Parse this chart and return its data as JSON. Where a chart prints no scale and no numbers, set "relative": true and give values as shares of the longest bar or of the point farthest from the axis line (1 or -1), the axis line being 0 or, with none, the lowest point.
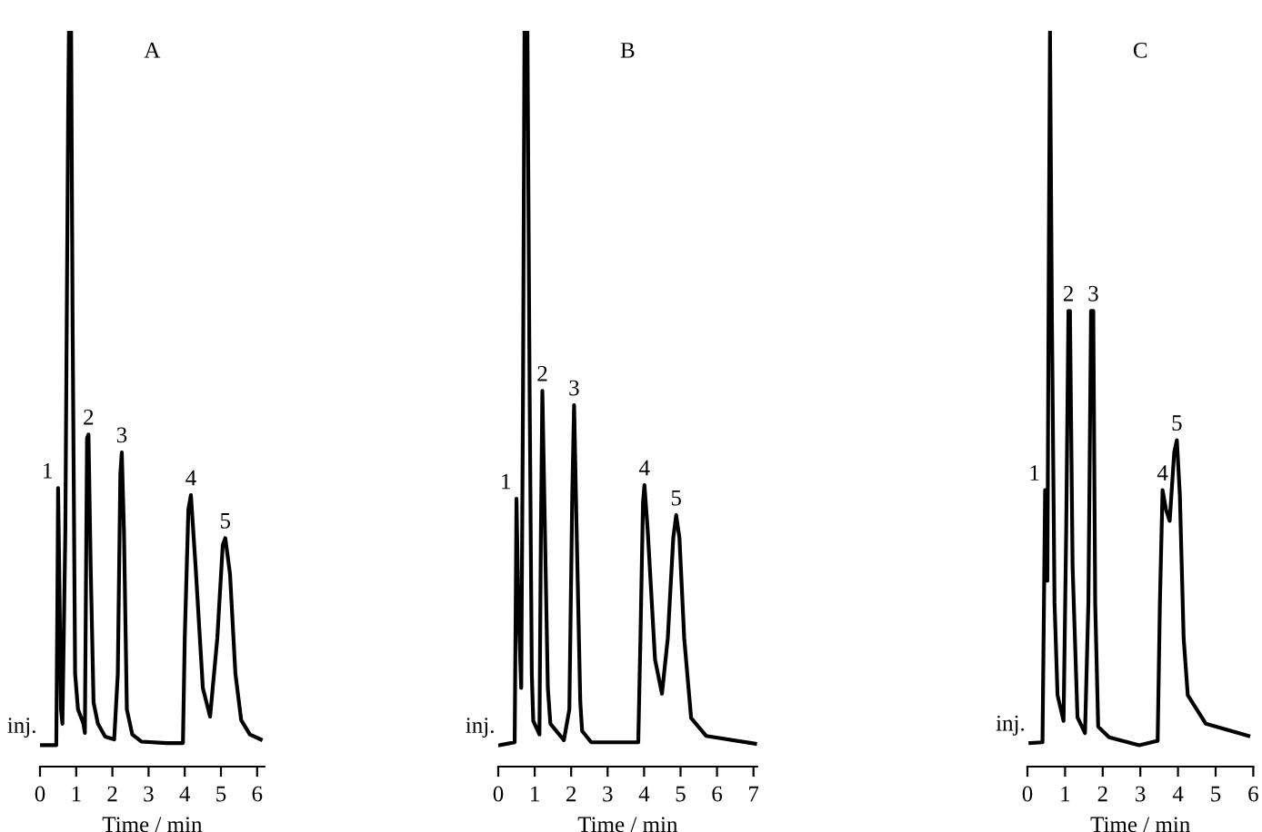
{
  "chart_data": [
    {
      "type": "line",
      "title": "A",
      "xlabel": "Time / min",
      "relative": true,
      "xlim": [
        0,
        6.2
      ],
      "xticks": [
        0,
        1,
        2,
        3,
        4,
        5,
        6
      ],
      "tick_labels": "x",
      "grid": false,
      "legend": false,
      "marker": "none",
      "line_style": "solid",
      "series": [
        {
          "color": "#000000",
          "x": [
            0.05,
            0.45,
            0.48,
            0.5,
            0.53,
            0.58,
            0.62,
            0.7,
            0.78,
            0.8,
            0.86,
            0.9,
            0.97,
            1.05,
            1.2,
            1.24,
            1.3,
            1.34,
            1.4,
            1.48,
            1.6,
            1.8,
            2.05,
            2.15,
            2.22,
            2.26,
            2.32,
            2.4,
            2.55,
            2.8,
            3.5,
            3.95,
            4.0,
            4.1,
            4.17,
            4.3,
            4.5,
            4.7,
            4.9,
            5.05,
            5.12,
            5.25,
            5.4,
            5.56,
            5.8,
            6.1
          ],
          "values": [
            0,
            0,
            0.2,
            0.36,
            0.25,
            0.05,
            0.03,
            0.3,
            0.9,
            1.0,
            1.0,
            0.6,
            0.1,
            0.05,
            0.03,
            0.017,
            0.43,
            0.435,
            0.25,
            0.06,
            0.03,
            0.012,
            0.008,
            0.1,
            0.38,
            0.41,
            0.3,
            0.05,
            0.015,
            0.005,
            0.003,
            0.003,
            0.15,
            0.33,
            0.35,
            0.25,
            0.08,
            0.04,
            0.15,
            0.28,
            0.29,
            0.24,
            0.1,
            0.035,
            0.015,
            0.008
          ]
        }
      ],
      "annotations": [
        {
          "text": "inj.",
          "x": 0.05,
          "y": 0
        },
        {
          "text": "1",
          "x": 0.5,
          "y": 0.36
        },
        {
          "text": "2",
          "x": 1.34,
          "y": 0.435
        },
        {
          "text": "3",
          "x": 2.26,
          "y": 0.41
        },
        {
          "text": "4",
          "x": 4.17,
          "y": 0.35
        },
        {
          "text": "5",
          "x": 5.12,
          "y": 0.29
        }
      ]
    },
    {
      "type": "line",
      "title": "B",
      "xlabel": "Time / min",
      "relative": true,
      "xlim": [
        0,
        7.1
      ],
      "xticks": [
        0,
        1,
        2,
        3,
        4,
        5,
        6,
        7
      ],
      "tick_labels": "x",
      "grid": false,
      "legend": false,
      "marker": "none",
      "line_style": "solid",
      "series": [
        {
          "color": "#000000",
          "x": [
            0.05,
            0.45,
            0.48,
            0.5,
            0.55,
            0.63,
            0.68,
            0.72,
            0.8,
            0.86,
            0.92,
            0.96,
            1.13,
            1.17,
            1.21,
            1.28,
            1.36,
            1.43,
            1.8,
            1.95,
            2.03,
            2.08,
            2.15,
            2.25,
            2.3,
            2.55,
            3.84,
            3.9,
            3.97,
            4.01,
            4.1,
            4.3,
            4.49,
            4.65,
            4.8,
            4.88,
            4.97,
            5.1,
            5.29,
            5.7,
            7.05
          ],
          "values": [
            0,
            0.004,
            0.2,
            0.345,
            0.2,
            0.08,
            0.5,
            1.0,
            1.0,
            0.5,
            0.1,
            0.034,
            0.015,
            0.3,
            0.496,
            0.3,
            0.08,
            0.03,
            0.007,
            0.05,
            0.35,
            0.476,
            0.3,
            0.06,
            0.02,
            0.004,
            0.004,
            0.15,
            0.34,
            0.364,
            0.3,
            0.12,
            0.072,
            0.15,
            0.29,
            0.322,
            0.29,
            0.15,
            0.038,
            0.013,
            0.002
          ]
        }
      ],
      "annotations": [
        {
          "text": "inj.",
          "x": 0.05,
          "y": 0
        },
        {
          "text": "1",
          "x": 0.5,
          "y": 0.345
        },
        {
          "text": "2",
          "x": 1.21,
          "y": 0.496
        },
        {
          "text": "3",
          "x": 2.08,
          "y": 0.476
        },
        {
          "text": "4",
          "x": 4.01,
          "y": 0.364
        },
        {
          "text": "5",
          "x": 4.88,
          "y": 0.322
        }
      ]
    },
    {
      "type": "line",
      "title": "C",
      "xlabel": "Time / min",
      "relative": true,
      "xlim": [
        0,
        6
      ],
      "xticks": [
        0,
        1,
        2,
        3,
        4,
        5,
        6
      ],
      "tick_labels": "x",
      "grid": false,
      "legend": false,
      "marker": "none",
      "line_style": "solid",
      "series": [
        {
          "color": "#000000",
          "x": [
            0.08,
            0.4,
            0.44,
            0.47,
            0.53,
            0.57,
            0.6,
            0.65,
            0.72,
            0.8,
            0.96,
            1.03,
            1.09,
            1.13,
            1.2,
            1.33,
            1.53,
            1.62,
            1.69,
            1.75,
            1.8,
            1.88,
            2.17,
            2.97,
            3.46,
            3.52,
            3.59,
            3.68,
            3.78,
            3.9,
            3.97,
            4.05,
            4.15,
            4.26,
            4.74,
            5.87
          ],
          "values": [
            0.003,
            0.004,
            0.2,
            0.357,
            0.23,
            0.7,
            1.0,
            0.6,
            0.2,
            0.07,
            0.034,
            0.3,
            0.608,
            0.608,
            0.25,
            0.039,
            0.017,
            0.2,
            0.608,
            0.608,
            0.2,
            0.026,
            0.011,
            0,
            0.006,
            0.2,
            0.357,
            0.33,
            0.314,
            0.41,
            0.427,
            0.35,
            0.15,
            0.07,
            0.03,
            0.013
          ]
        }
      ],
      "annotations": [
        {
          "text": "inj.",
          "x": 0.08,
          "y": 0.003
        },
        {
          "text": "1",
          "x": 0.47,
          "y": 0.357
        },
        {
          "text": "2",
          "x": 1.09,
          "y": 0.608
        },
        {
          "text": "3",
          "x": 1.75,
          "y": 0.608
        },
        {
          "text": "4",
          "x": 3.59,
          "y": 0.357
        },
        {
          "text": "5",
          "x": 3.97,
          "y": 0.427
        }
      ]
    }
  ]
}
